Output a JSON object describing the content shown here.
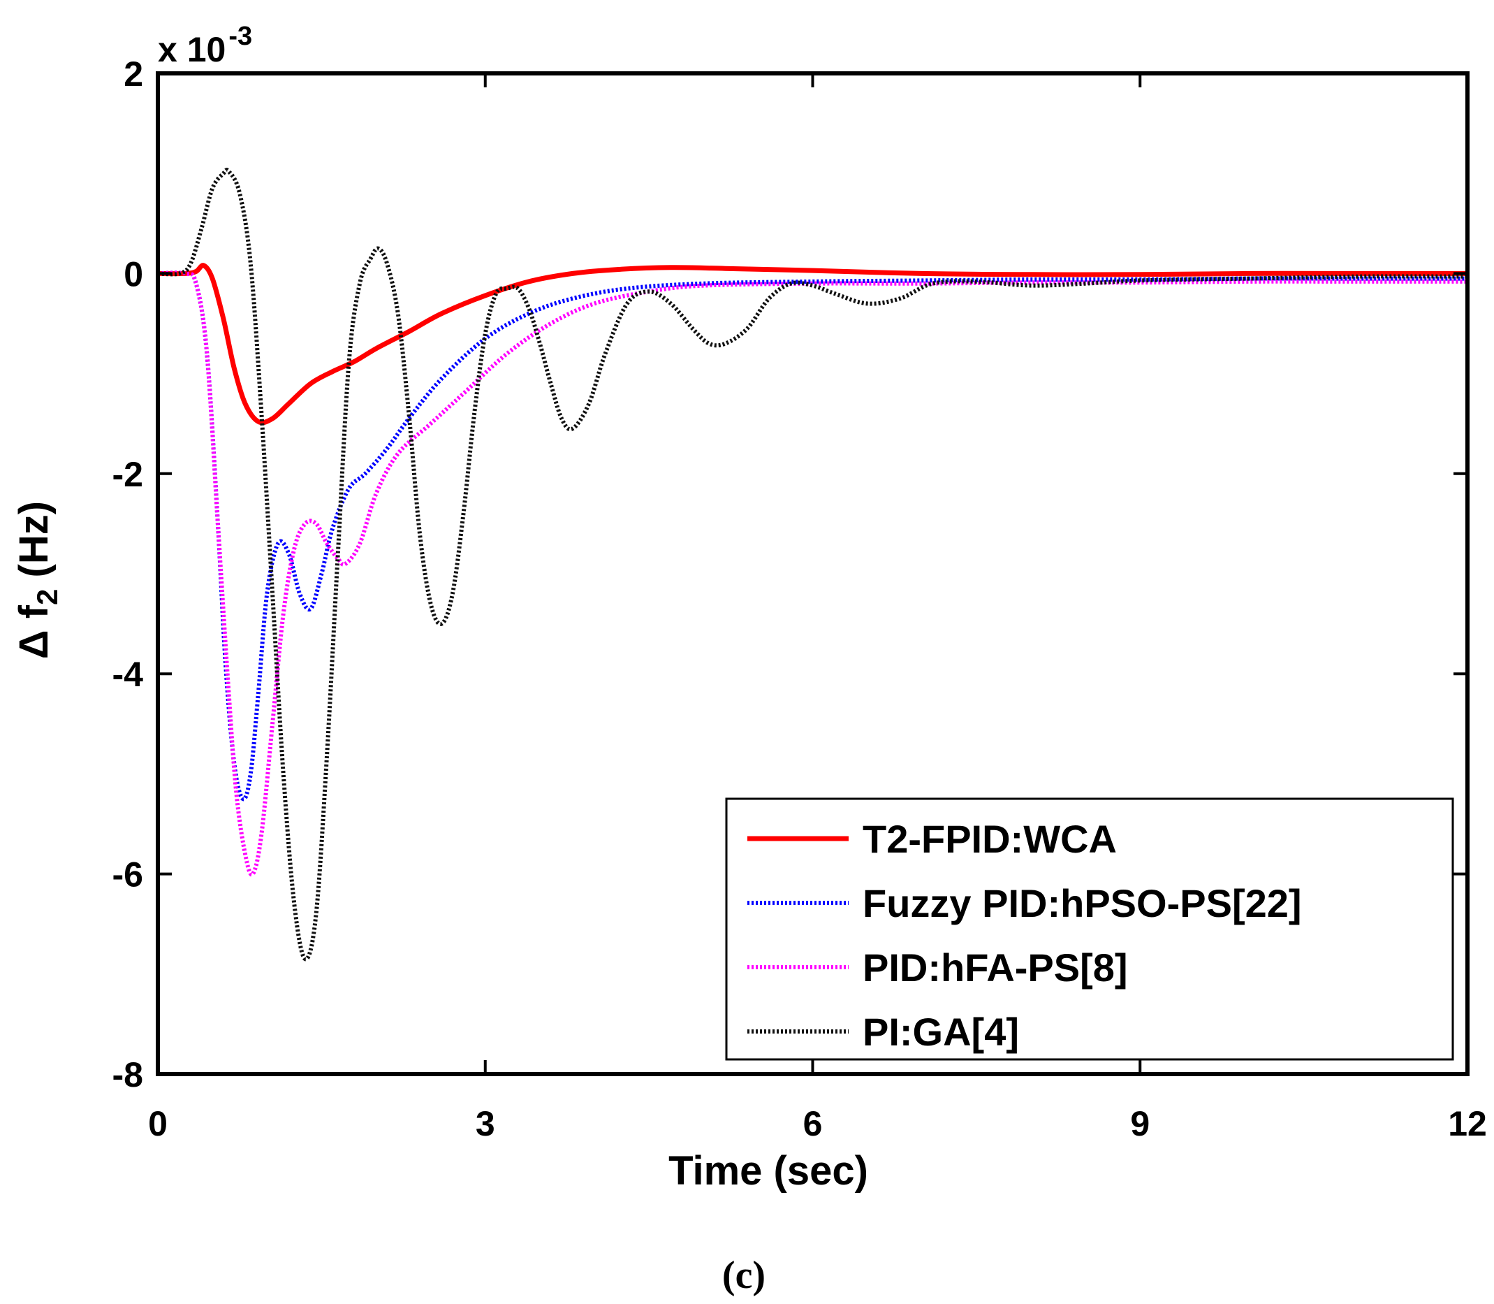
{
  "chart_data": {
    "type": "line",
    "title": "",
    "xlabel": "Time (sec)",
    "ylabel_prefix": "Δ f",
    "ylabel_sub": "2",
    "ylabel_suffix": " (Hz)",
    "y_exponent_base": "x 10",
    "y_exponent_power": "-3",
    "xlim": [
      0,
      12
    ],
    "ylim": [
      -8,
      2
    ],
    "xticks": [
      0,
      3,
      6,
      9,
      12
    ],
    "yticks": [
      2,
      0,
      -2,
      -4,
      -6,
      -8
    ],
    "grid": false,
    "legend_position": "bottom-right",
    "caption": "(c)",
    "series": [
      {
        "name": "T2-FPID:WCA",
        "color": "#ff0000",
        "style": "solid",
        "x": [
          0,
          0.25,
          0.35,
          0.42,
          0.5,
          0.6,
          0.7,
          0.8,
          0.92,
          1.05,
          1.2,
          1.4,
          1.6,
          1.8,
          2.0,
          2.3,
          2.6,
          3.0,
          3.4,
          3.8,
          4.2,
          4.7,
          5.2,
          6.0,
          7.0,
          8.0,
          9.0,
          10.0,
          11.0,
          12.0
        ],
        "values": [
          0,
          0,
          0.02,
          0.08,
          -0.05,
          -0.45,
          -0.95,
          -1.3,
          -1.48,
          -1.45,
          -1.3,
          -1.1,
          -0.98,
          -0.88,
          -0.75,
          -0.58,
          -0.4,
          -0.22,
          -0.08,
          0.0,
          0.04,
          0.06,
          0.05,
          0.03,
          0.0,
          -0.01,
          -0.01,
          0.0,
          0.0,
          0.0
        ]
      },
      {
        "name": "Fuzzy PID:hPSO-PS[22]",
        "color": "#0000ff",
        "style": "dotted",
        "x": [
          0,
          0.25,
          0.35,
          0.45,
          0.55,
          0.62,
          0.7,
          0.78,
          0.85,
          0.92,
          1.0,
          1.1,
          1.2,
          1.3,
          1.4,
          1.5,
          1.6,
          1.75,
          1.9,
          2.1,
          2.3,
          2.6,
          3.0,
          3.4,
          3.8,
          4.3,
          5.0,
          6.0,
          7.0,
          8.0,
          9.0,
          10.0,
          11.0,
          12.0
        ],
        "values": [
          0,
          0,
          -0.1,
          -0.8,
          -2.5,
          -3.9,
          -4.9,
          -5.25,
          -5.0,
          -4.2,
          -3.2,
          -2.7,
          -2.8,
          -3.2,
          -3.35,
          -3.0,
          -2.55,
          -2.15,
          -2.0,
          -1.75,
          -1.45,
          -1.05,
          -0.65,
          -0.4,
          -0.25,
          -0.15,
          -0.1,
          -0.08,
          -0.07,
          -0.06,
          -0.06,
          -0.05,
          -0.05,
          -0.05
        ]
      },
      {
        "name": "PID:hFA-PS[8]",
        "color": "#ff00ff",
        "style": "dotted",
        "x": [
          0,
          0.25,
          0.35,
          0.45,
          0.55,
          0.65,
          0.72,
          0.8,
          0.87,
          0.95,
          1.05,
          1.15,
          1.25,
          1.35,
          1.45,
          1.55,
          1.65,
          1.72,
          1.85,
          2.0,
          2.2,
          2.5,
          2.8,
          3.2,
          3.6,
          4.0,
          4.5,
          5.0,
          6.0,
          7.0,
          8.0,
          9.0,
          10.0,
          11.0,
          12.0
        ],
        "values": [
          0,
          0,
          -0.1,
          -0.8,
          -2.5,
          -4.2,
          -5.2,
          -5.8,
          -6.0,
          -5.6,
          -4.5,
          -3.4,
          -2.75,
          -2.5,
          -2.5,
          -2.7,
          -2.85,
          -2.9,
          -2.7,
          -2.2,
          -1.8,
          -1.5,
          -1.2,
          -0.8,
          -0.5,
          -0.3,
          -0.18,
          -0.12,
          -0.1,
          -0.1,
          -0.09,
          -0.09,
          -0.08,
          -0.08,
          -0.08
        ]
      },
      {
        "name": "PI:GA[4]",
        "color": "#111111",
        "style": "dotted",
        "x": [
          0,
          0.2,
          0.3,
          0.4,
          0.5,
          0.6,
          0.65,
          0.75,
          0.85,
          0.95,
          1.05,
          1.15,
          1.25,
          1.35,
          1.45,
          1.55,
          1.65,
          1.75,
          1.85,
          1.95,
          2.02,
          2.1,
          2.2,
          2.3,
          2.4,
          2.5,
          2.6,
          2.7,
          2.8,
          2.9,
          3.0,
          3.1,
          3.2,
          3.3,
          3.4,
          3.5,
          3.6,
          3.7,
          3.8,
          3.95,
          4.1,
          4.3,
          4.5,
          4.7,
          4.9,
          5.05,
          5.2,
          5.4,
          5.6,
          5.8,
          6.0,
          6.2,
          6.5,
          6.8,
          7.1,
          7.5,
          8.0,
          8.5,
          9.0,
          10.0,
          11.0,
          12.0
        ],
        "values": [
          0,
          0,
          0.1,
          0.45,
          0.85,
          1.0,
          1.02,
          0.8,
          0.1,
          -1.4,
          -3.2,
          -5.0,
          -6.3,
          -6.85,
          -6.4,
          -4.8,
          -2.8,
          -0.9,
          -0.1,
          0.15,
          0.25,
          0.1,
          -0.4,
          -1.4,
          -2.6,
          -3.3,
          -3.5,
          -3.2,
          -2.4,
          -1.4,
          -0.6,
          -0.2,
          -0.15,
          -0.15,
          -0.35,
          -0.7,
          -1.1,
          -1.45,
          -1.55,
          -1.3,
          -0.8,
          -0.3,
          -0.18,
          -0.3,
          -0.55,
          -0.7,
          -0.7,
          -0.55,
          -0.25,
          -0.1,
          -0.12,
          -0.2,
          -0.3,
          -0.25,
          -0.1,
          -0.08,
          -0.12,
          -0.1,
          -0.07,
          -0.05,
          -0.03,
          -0.03
        ]
      }
    ]
  }
}
